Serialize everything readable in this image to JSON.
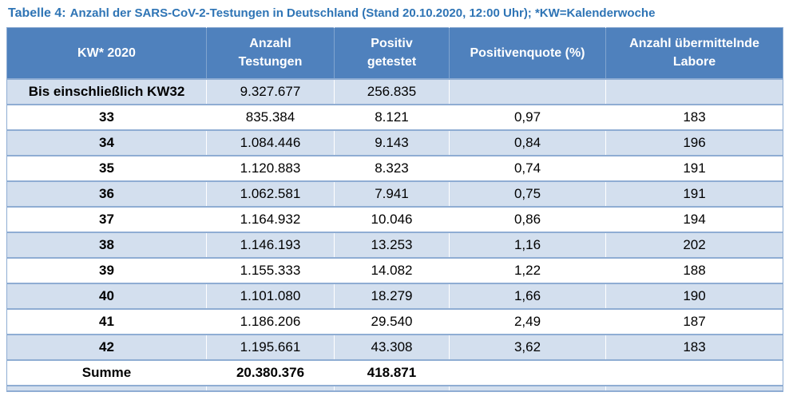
{
  "title": {
    "label": "Tabelle 4:",
    "text": "Anzahl der SARS-CoV-2-Testungen in Deutschland (Stand 20.10.2020, 12:00 Uhr); *KW=Kalenderwoche"
  },
  "colors": {
    "header_bg": "#4F81BD",
    "row_shaded": "#D3DFEE",
    "border": "#8FADD3",
    "title": "#2E74B5",
    "header_text": "#FFFFFF"
  },
  "table": {
    "columns": [
      {
        "key": "kw",
        "label": "KW* 2020"
      },
      {
        "key": "tests",
        "label": "Anzahl\nTestungen"
      },
      {
        "key": "positive",
        "label": "Positiv\ngetestet"
      },
      {
        "key": "rate",
        "label": "Positivenquote (%)"
      },
      {
        "key": "labs",
        "label": "Anzahl übermittelnde\nLabore"
      }
    ],
    "rows": [
      {
        "kw": "Bis einschließlich KW32",
        "tests": "9.327.677",
        "positive": "256.835",
        "rate": "",
        "labs": "",
        "total": false
      },
      {
        "kw": "33",
        "tests": "835.384",
        "positive": "8.121",
        "rate": "0,97",
        "labs": "183",
        "total": false
      },
      {
        "kw": "34",
        "tests": "1.084.446",
        "positive": "9.143",
        "rate": "0,84",
        "labs": "196",
        "total": false
      },
      {
        "kw": "35",
        "tests": "1.120.883",
        "positive": "8.323",
        "rate": "0,74",
        "labs": "191",
        "total": false
      },
      {
        "kw": "36",
        "tests": "1.062.581",
        "positive": "7.941",
        "rate": "0,75",
        "labs": "191",
        "total": false
      },
      {
        "kw": "37",
        "tests": "1.164.932",
        "positive": "10.046",
        "rate": "0,86",
        "labs": "194",
        "total": false
      },
      {
        "kw": "38",
        "tests": "1.146.193",
        "positive": "13.253",
        "rate": "1,16",
        "labs": "202",
        "total": false
      },
      {
        "kw": "39",
        "tests": "1.155.333",
        "positive": "14.082",
        "rate": "1,22",
        "labs": "188",
        "total": false
      },
      {
        "kw": "40",
        "tests": "1.101.080",
        "positive": "18.279",
        "rate": "1,66",
        "labs": "190",
        "total": false
      },
      {
        "kw": "41",
        "tests": "1.186.206",
        "positive": "29.540",
        "rate": "2,49",
        "labs": "187",
        "total": false
      },
      {
        "kw": "42",
        "tests": "1.195.661",
        "positive": "43.308",
        "rate": "3,62",
        "labs": "183",
        "total": false
      },
      {
        "kw": "Summe",
        "tests": "20.380.376",
        "positive": "418.871",
        "rate": "",
        "labs": "",
        "total": true
      }
    ]
  }
}
